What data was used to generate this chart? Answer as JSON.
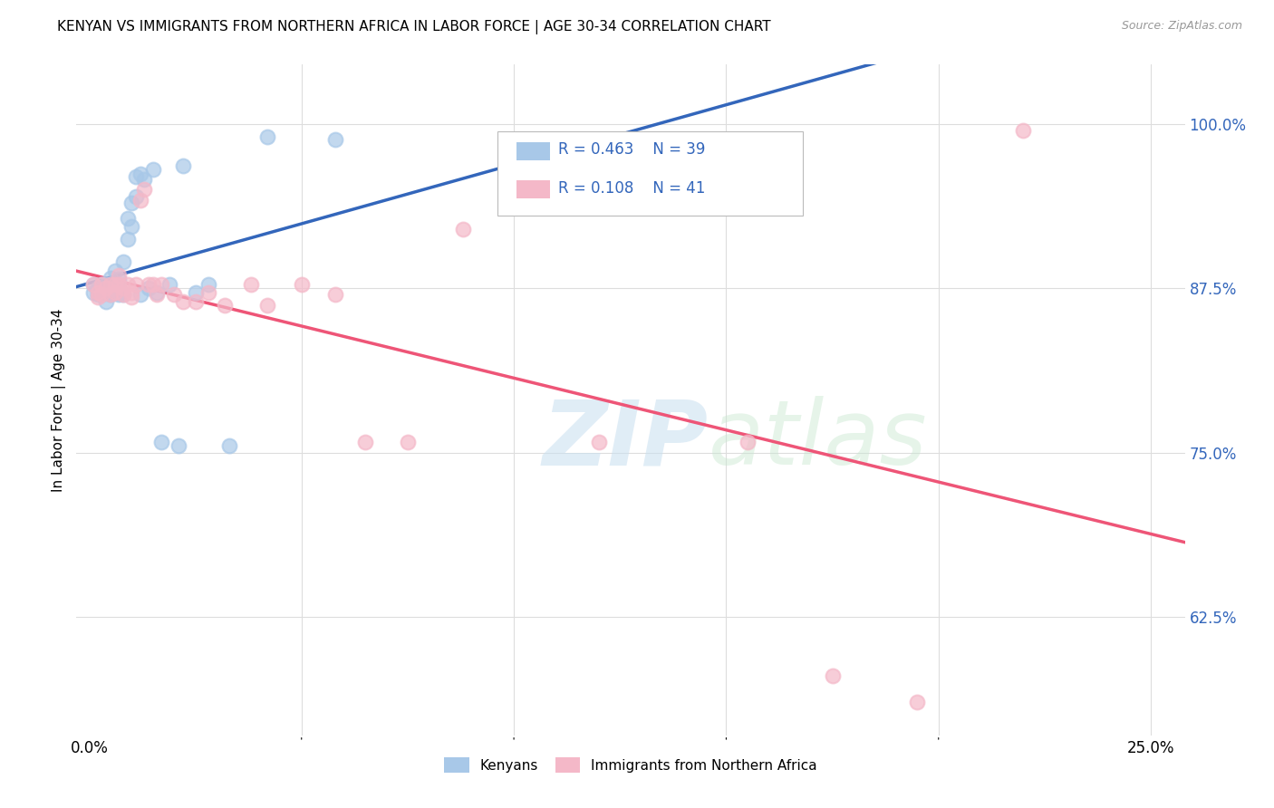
{
  "title": "KENYAN VS IMMIGRANTS FROM NORTHERN AFRICA IN LABOR FORCE | AGE 30-34 CORRELATION CHART",
  "source": "Source: ZipAtlas.com",
  "ylabel": "In Labor Force | Age 30-34",
  "ytick_vals": [
    0.625,
    0.75,
    0.875,
    1.0
  ],
  "ytick_labels": [
    "62.5%",
    "75.0%",
    "87.5%",
    "100.0%"
  ],
  "xtick_vals": [
    0.0,
    0.25
  ],
  "xtick_labels": [
    "0.0%",
    "25.0%"
  ],
  "xmin": -0.003,
  "xmax": 0.258,
  "ymin": 0.535,
  "ymax": 1.045,
  "legend_R1": "0.463",
  "legend_N1": "39",
  "legend_R2": "0.108",
  "legend_N2": "41",
  "blue_color": "#a8c8e8",
  "pink_color": "#f4b8c8",
  "line_blue": "#3366BB",
  "line_pink": "#EE5577",
  "text_blue": "#3366BB",
  "text_pink": "#EE5577",
  "kenyans_x": [
    0.001,
    0.001,
    0.002,
    0.002,
    0.003,
    0.003,
    0.004,
    0.004,
    0.005,
    0.005,
    0.005,
    0.006,
    0.006,
    0.007,
    0.007,
    0.007,
    0.008,
    0.008,
    0.009,
    0.009,
    0.01,
    0.01,
    0.011,
    0.011,
    0.012,
    0.012,
    0.013,
    0.014,
    0.015,
    0.016,
    0.017,
    0.019,
    0.021,
    0.022,
    0.025,
    0.028,
    0.033,
    0.042,
    0.058
  ],
  "kenyans_y": [
    0.872,
    0.878,
    0.875,
    0.87,
    0.878,
    0.87,
    0.878,
    0.865,
    0.883,
    0.875,
    0.87,
    0.888,
    0.872,
    0.882,
    0.875,
    0.87,
    0.895,
    0.87,
    0.928,
    0.912,
    0.94,
    0.922,
    0.945,
    0.96,
    0.962,
    0.87,
    0.958,
    0.875,
    0.965,
    0.872,
    0.758,
    0.878,
    0.755,
    0.968,
    0.872,
    0.878,
    0.755,
    0.99,
    0.988
  ],
  "africa_x": [
    0.001,
    0.002,
    0.002,
    0.003,
    0.003,
    0.004,
    0.005,
    0.005,
    0.006,
    0.006,
    0.007,
    0.007,
    0.008,
    0.008,
    0.009,
    0.01,
    0.01,
    0.011,
    0.012,
    0.013,
    0.014,
    0.015,
    0.016,
    0.017,
    0.02,
    0.022,
    0.025,
    0.028,
    0.032,
    0.038,
    0.042,
    0.05,
    0.058,
    0.065,
    0.075,
    0.088,
    0.12,
    0.155,
    0.175,
    0.195,
    0.22
  ],
  "africa_y": [
    0.878,
    0.872,
    0.868,
    0.878,
    0.87,
    0.875,
    0.878,
    0.87,
    0.878,
    0.872,
    0.885,
    0.878,
    0.875,
    0.87,
    0.878,
    0.872,
    0.868,
    0.878,
    0.942,
    0.95,
    0.878,
    0.878,
    0.87,
    0.878,
    0.87,
    0.865,
    0.865,
    0.872,
    0.862,
    0.878,
    0.862,
    0.878,
    0.87,
    0.758,
    0.758,
    0.92,
    0.758,
    0.758,
    0.58,
    0.56,
    0.995
  ]
}
